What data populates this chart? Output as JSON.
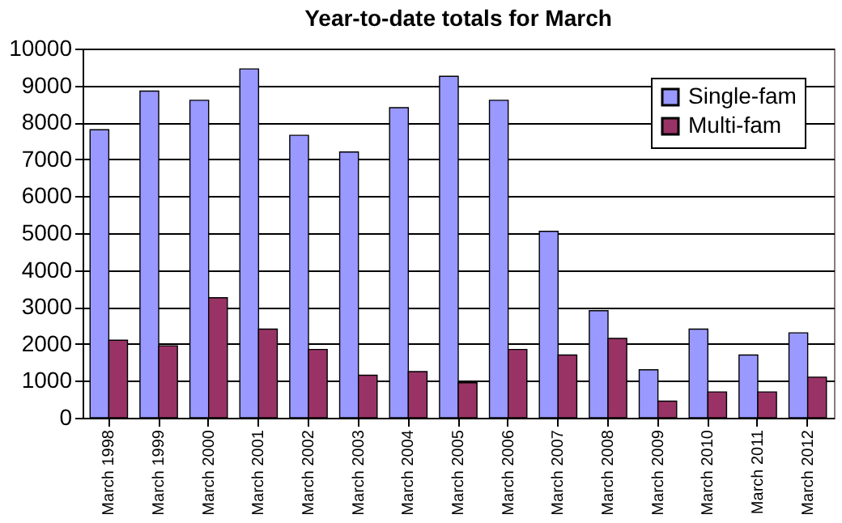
{
  "chart_data": {
    "type": "bar",
    "title": "Year-to-date totals for March",
    "categories": [
      "March 1998",
      "March 1999",
      "March 2000",
      "March 2001",
      "March 2002",
      "March 2003",
      "March 2004",
      "March 2005",
      "March 2006",
      "March 2007",
      "March 2008",
      "March 2009",
      "March 2010",
      "March 2011",
      "March 2012"
    ],
    "series": [
      {
        "name": "Single-fam",
        "color": "#9999ff",
        "values": [
          7800,
          8850,
          8600,
          9450,
          7650,
          7200,
          8400,
          9250,
          8600,
          5050,
          2900,
          1300,
          2400,
          1700,
          2300
        ]
      },
      {
        "name": "Multi-fam",
        "color": "#993366",
        "values": [
          2100,
          1950,
          3250,
          2400,
          1850,
          1150,
          1250,
          950,
          1850,
          1700,
          2150,
          450,
          700,
          700,
          1100
        ]
      }
    ],
    "ylim": [
      0,
      10000
    ],
    "yticks": [
      0,
      1000,
      2000,
      3000,
      4000,
      5000,
      6000,
      7000,
      8000,
      9000,
      10000
    ],
    "grid": "y",
    "legend": "top right"
  }
}
